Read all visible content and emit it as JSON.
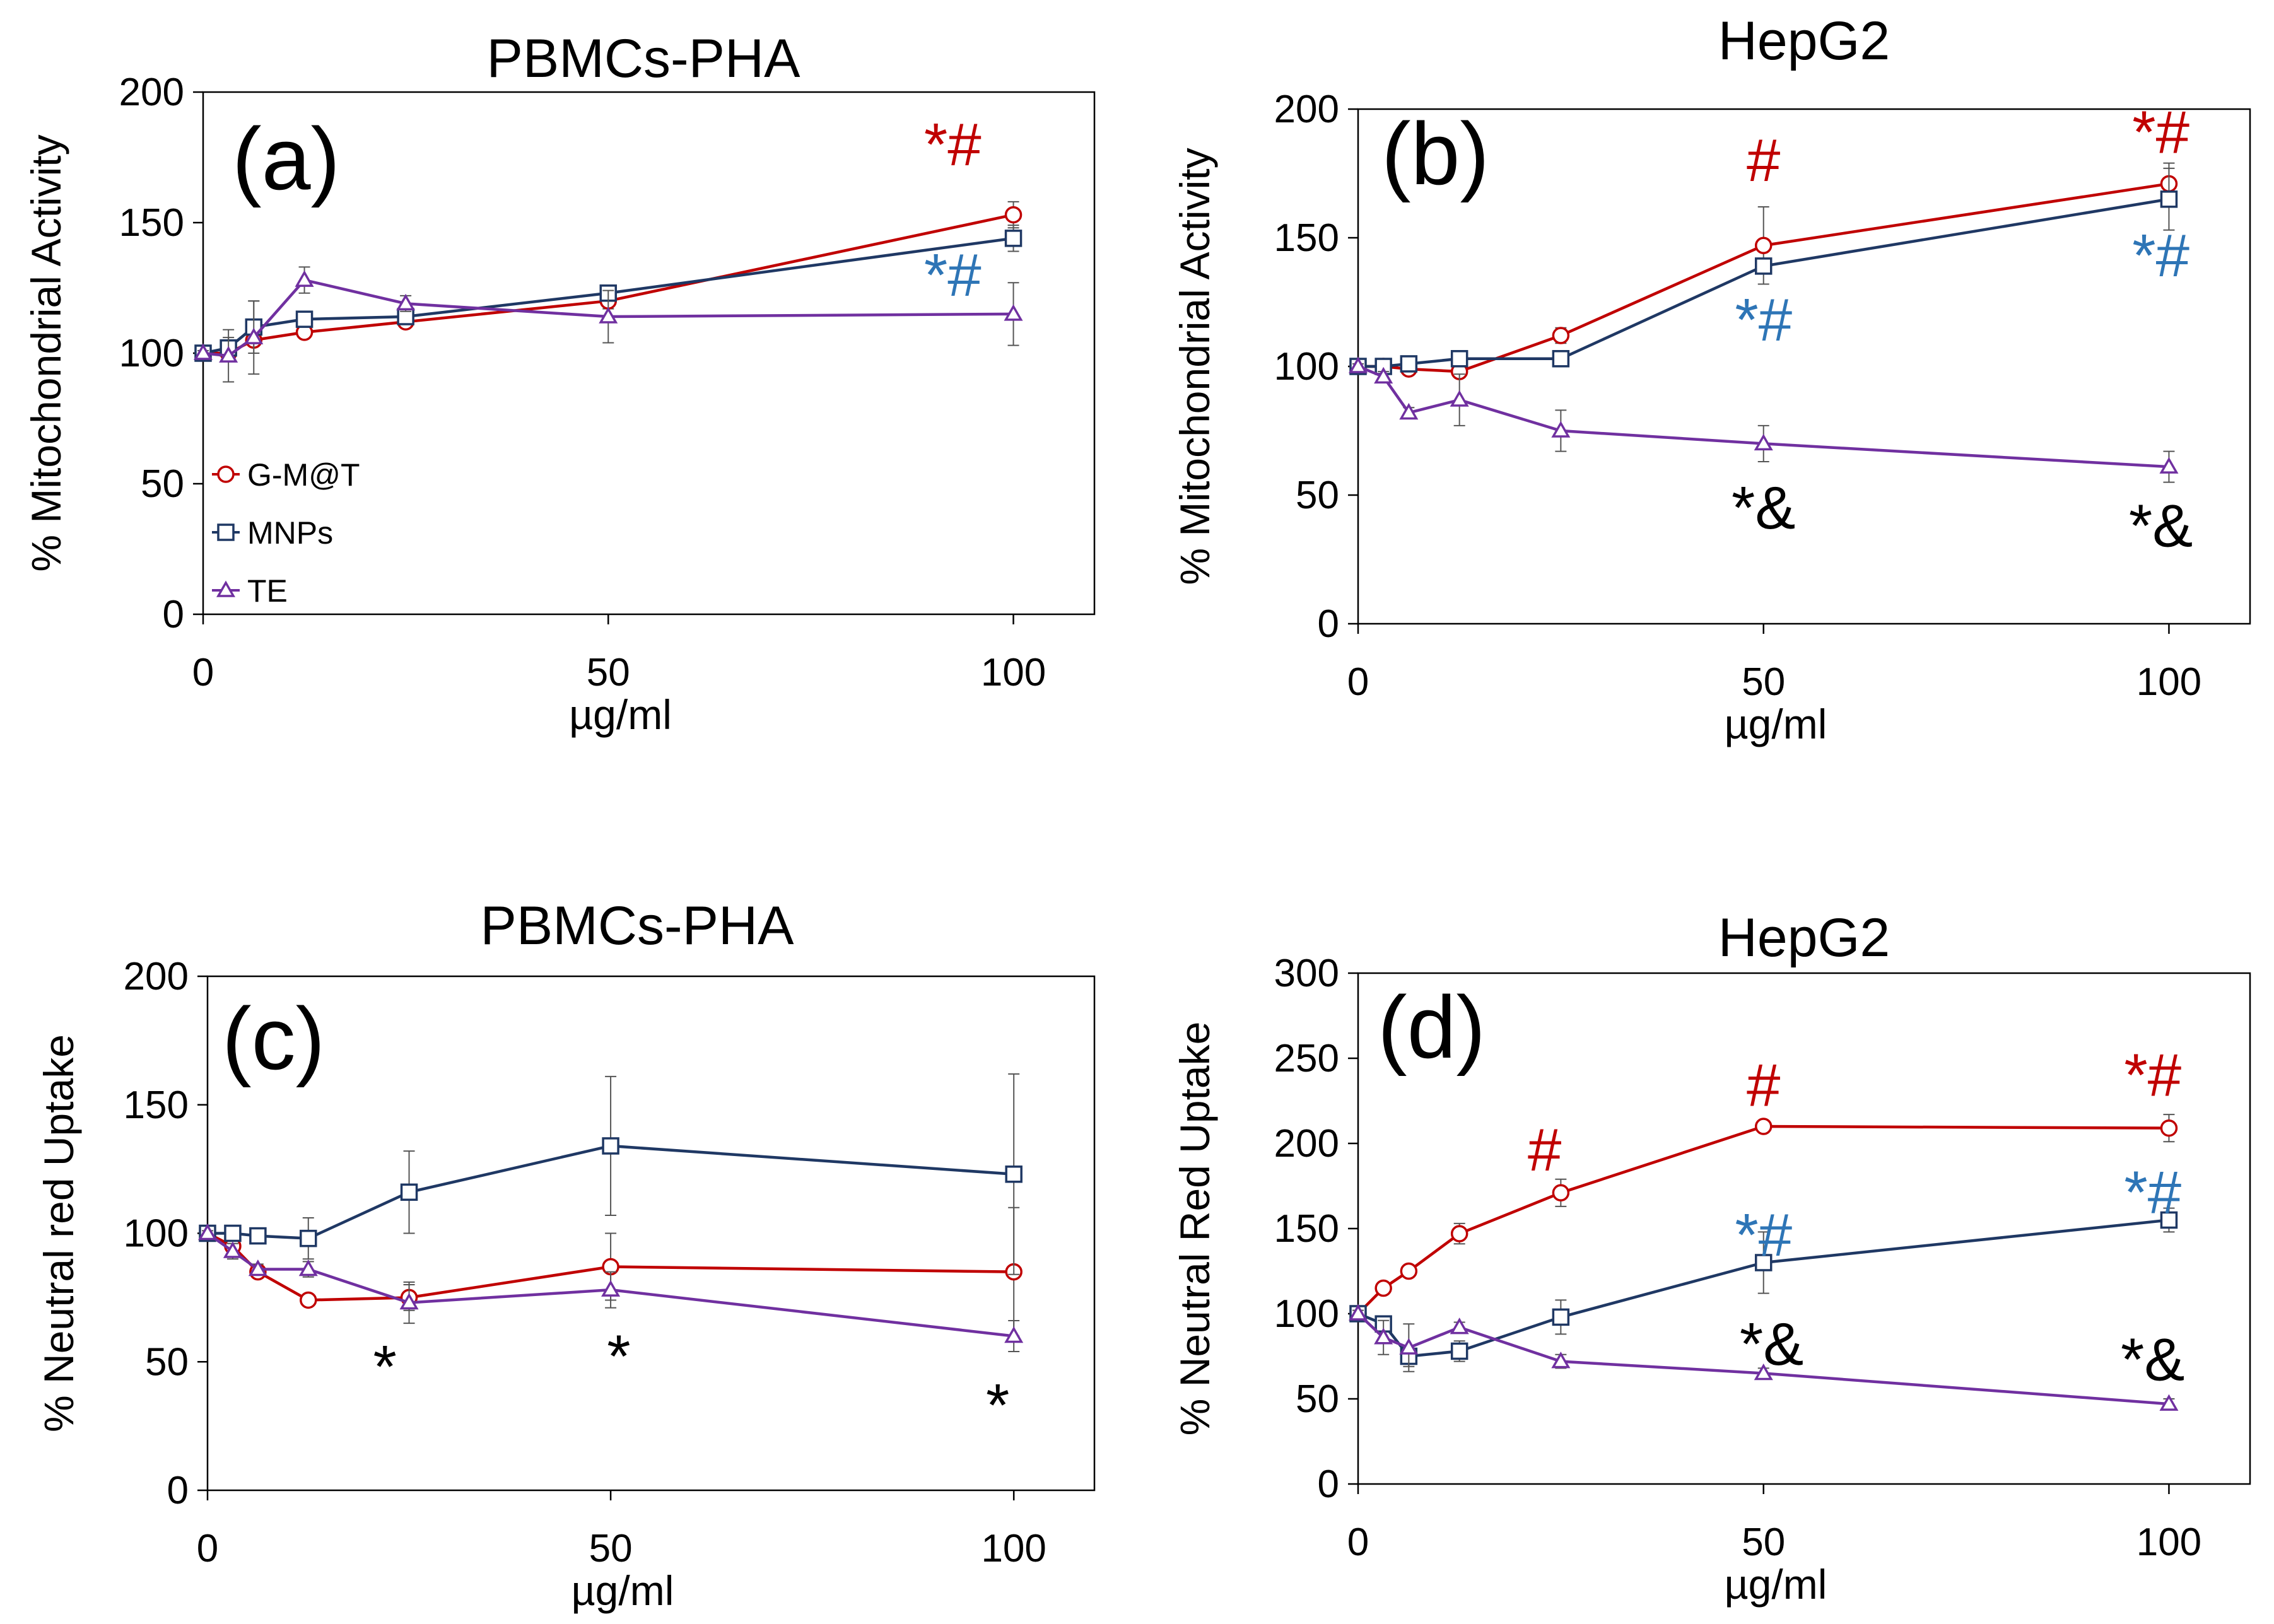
{
  "chart_data": [
    {
      "type": "line",
      "id": "a",
      "title": "PBMCs-PHA",
      "panel_label": "(a)",
      "xlabel": "µg/ml",
      "ylabel": "% Mitochondrial Activity",
      "xlim": [
        0,
        110
      ],
      "ylim": [
        0,
        200
      ],
      "xticks": [
        0,
        50,
        100
      ],
      "yticks": [
        0,
        50,
        100,
        150,
        200
      ],
      "legend": {
        "position": "bottom-left",
        "entries": [
          "G-M@T",
          "MNPs",
          "TE"
        ]
      },
      "series": [
        {
          "name": "G-M@T",
          "color": "#C00000",
          "marker": "circle",
          "x": [
            0,
            3.125,
            6.25,
            12.5,
            25,
            50,
            100
          ],
          "values": [
            100,
            100,
            105,
            108,
            112,
            120,
            153
          ],
          "errors": [
            1,
            2,
            2,
            2,
            2,
            3,
            5
          ]
        },
        {
          "name": "MNPs",
          "color": "#1F3864",
          "marker": "square",
          "x": [
            0,
            3.125,
            6.25,
            12.5,
            25,
            50,
            100
          ],
          "values": [
            100,
            102,
            110,
            113,
            114,
            123,
            144
          ],
          "errors": [
            1,
            4,
            10,
            2,
            2,
            3,
            5
          ]
        },
        {
          "name": "TE",
          "color": "#7030A0",
          "marker": "triangle",
          "x": [
            0,
            3.125,
            6.25,
            12.5,
            25,
            50,
            100
          ],
          "values": [
            100,
            99,
            106,
            128,
            119,
            114,
            115
          ],
          "errors": [
            1,
            10,
            14,
            5,
            3,
            10,
            12
          ]
        }
      ],
      "annotations": [
        {
          "x": 92.5,
          "y": 172,
          "parts": [
            {
              "text": "*",
              "color": "#C00000"
            },
            {
              "text": "#",
              "color": "#C00000"
            }
          ]
        },
        {
          "x": 92.5,
          "y": 122,
          "parts": [
            {
              "text": "*",
              "color": "#2E75B6"
            },
            {
              "text": "#",
              "color": "#2E75B6"
            }
          ]
        }
      ]
    },
    {
      "type": "line",
      "id": "b",
      "title": "HepG2",
      "panel_label": "(b)",
      "xlabel": "µg/ml",
      "ylabel": "% Mitochondrial Activity",
      "xlim": [
        0,
        110
      ],
      "ylim": [
        0,
        200
      ],
      "xticks": [
        0,
        50,
        100
      ],
      "yticks": [
        0,
        50,
        100,
        150,
        200
      ],
      "series": [
        {
          "name": "G-M@T",
          "color": "#C00000",
          "marker": "circle",
          "x": [
            0,
            3.125,
            6.25,
            12.5,
            25,
            50,
            100
          ],
          "values": [
            100,
            100,
            99,
            98,
            112,
            147,
            171
          ],
          "errors": [
            1,
            1,
            1,
            2,
            3,
            15,
            8
          ]
        },
        {
          "name": "MNPs",
          "color": "#1F3864",
          "marker": "square",
          "x": [
            0,
            3.125,
            6.25,
            12.5,
            25,
            50,
            100
          ],
          "values": [
            100,
            100,
            101,
            103,
            103,
            139,
            165
          ],
          "errors": [
            1,
            1,
            1,
            1,
            1,
            3,
            12
          ]
        },
        {
          "name": "TE",
          "color": "#7030A0",
          "marker": "triangle",
          "x": [
            0,
            3.125,
            6.25,
            12.5,
            25,
            50,
            100
          ],
          "values": [
            100,
            96,
            82,
            87,
            75,
            70,
            61
          ],
          "errors": [
            1,
            2,
            2,
            10,
            8,
            7,
            6
          ]
        }
      ],
      "annotations": [
        {
          "x": 50,
          "y": 172,
          "parts": [
            {
              "text": "#",
              "color": "#C00000"
            }
          ]
        },
        {
          "x": 99,
          "y": 183,
          "parts": [
            {
              "text": "*",
              "color": "#C00000"
            },
            {
              "text": "#",
              "color": "#C00000"
            }
          ]
        },
        {
          "x": 99,
          "y": 135,
          "parts": [
            {
              "text": "*",
              "color": "#2E75B6"
            },
            {
              "text": "#",
              "color": "#2E75B6"
            }
          ]
        },
        {
          "x": 50,
          "y": 110,
          "parts": [
            {
              "text": "*",
              "color": "#2E75B6"
            },
            {
              "text": "#",
              "color": "#2E75B6"
            }
          ]
        },
        {
          "x": 50,
          "y": 37,
          "parts": [
            {
              "text": "*&",
              "color": "#000000"
            }
          ]
        },
        {
          "x": 99,
          "y": 30,
          "parts": [
            {
              "text": "*&",
              "color": "#000000"
            }
          ]
        }
      ]
    },
    {
      "type": "line",
      "id": "c",
      "title": "PBMCs-PHA",
      "panel_label": "(c)",
      "xlabel": "µg/ml",
      "ylabel": "% Neutral red Uptake",
      "xlim": [
        0,
        110
      ],
      "ylim": [
        0,
        200
      ],
      "xticks": [
        0,
        50,
        100
      ],
      "yticks": [
        0,
        50,
        100,
        150,
        200
      ],
      "series": [
        {
          "name": "G-M@T",
          "color": "#C00000",
          "marker": "circle",
          "x": [
            0,
            3.125,
            6.25,
            12.5,
            25,
            50,
            100
          ],
          "values": [
            100,
            95,
            85,
            74,
            75,
            87,
            85
          ],
          "errors": [
            1,
            2,
            2,
            2,
            5,
            13,
            25
          ]
        },
        {
          "name": "MNPs",
          "color": "#1F3864",
          "marker": "square",
          "x": [
            0,
            3.125,
            6.25,
            12.5,
            25,
            50,
            100
          ],
          "values": [
            100,
            100,
            99,
            98,
            116,
            134,
            123
          ],
          "errors": [
            1,
            1,
            1,
            8,
            16,
            27,
            39
          ]
        },
        {
          "name": "TE",
          "color": "#7030A0",
          "marker": "triangle",
          "x": [
            0,
            3.125,
            6.25,
            12.5,
            25,
            50,
            100
          ],
          "values": [
            100,
            93,
            86,
            86,
            73,
            78,
            60
          ],
          "errors": [
            1,
            3,
            2,
            3,
            8,
            7,
            6
          ]
        }
      ],
      "annotations": [
        {
          "x": 22,
          "y": 40,
          "parts": [
            {
              "text": "*",
              "color": "#000000"
            }
          ]
        },
        {
          "x": 51,
          "y": 44,
          "parts": [
            {
              "text": "*",
              "color": "#000000"
            }
          ]
        },
        {
          "x": 98,
          "y": 25,
          "parts": [
            {
              "text": "*",
              "color": "#000000"
            }
          ]
        }
      ]
    },
    {
      "type": "line",
      "id": "d",
      "title": "HepG2",
      "panel_label": "(d)",
      "xlabel": "µg/ml",
      "ylabel": "% Neutral Red Uptake",
      "xlim": [
        0,
        110
      ],
      "ylim": [
        0,
        300
      ],
      "xticks": [
        0,
        50,
        100
      ],
      "yticks": [
        0,
        50,
        100,
        150,
        200,
        250,
        300
      ],
      "series": [
        {
          "name": "G-M@T",
          "color": "#C00000",
          "marker": "circle",
          "x": [
            0,
            3.125,
            6.25,
            12.5,
            25,
            50,
            100
          ],
          "values": [
            100,
            115,
            125,
            147,
            171,
            210,
            209
          ],
          "errors": [
            1,
            2,
            2,
            6,
            8,
            2,
            8
          ]
        },
        {
          "name": "MNPs",
          "color": "#1F3864",
          "marker": "square",
          "x": [
            0,
            3.125,
            6.25,
            12.5,
            25,
            50,
            100
          ],
          "values": [
            100,
            94,
            75,
            78,
            98,
            130,
            155
          ],
          "errors": [
            2,
            4,
            6,
            6,
            10,
            18,
            7
          ]
        },
        {
          "name": "TE",
          "color": "#7030A0",
          "marker": "triangle",
          "x": [
            0,
            3.125,
            6.25,
            12.5,
            25,
            50,
            100
          ],
          "values": [
            100,
            86,
            80,
            92,
            72,
            65,
            47
          ],
          "errors": [
            2,
            10,
            14,
            3,
            4,
            3,
            3
          ]
        }
      ],
      "annotations": [
        {
          "x": 23,
          "y": 184,
          "parts": [
            {
              "text": "#",
              "color": "#C00000"
            }
          ]
        },
        {
          "x": 50,
          "y": 222,
          "parts": [
            {
              "text": "#",
              "color": "#C00000"
            }
          ]
        },
        {
          "x": 98,
          "y": 228,
          "parts": [
            {
              "text": "*",
              "color": "#C00000"
            },
            {
              "text": "#",
              "color": "#C00000"
            }
          ]
        },
        {
          "x": 98,
          "y": 159,
          "parts": [
            {
              "text": "*",
              "color": "#2E75B6"
            },
            {
              "text": "#",
              "color": "#2E75B6"
            }
          ]
        },
        {
          "x": 50,
          "y": 134,
          "parts": [
            {
              "text": "*",
              "color": "#2E75B6"
            },
            {
              "text": "#",
              "color": "#2E75B6"
            }
          ]
        },
        {
          "x": 51,
          "y": 70,
          "parts": [
            {
              "text": "*&",
              "color": "#000000"
            }
          ]
        },
        {
          "x": 98,
          "y": 61,
          "parts": [
            {
              "text": "*&",
              "color": "#000000"
            }
          ]
        }
      ]
    }
  ]
}
